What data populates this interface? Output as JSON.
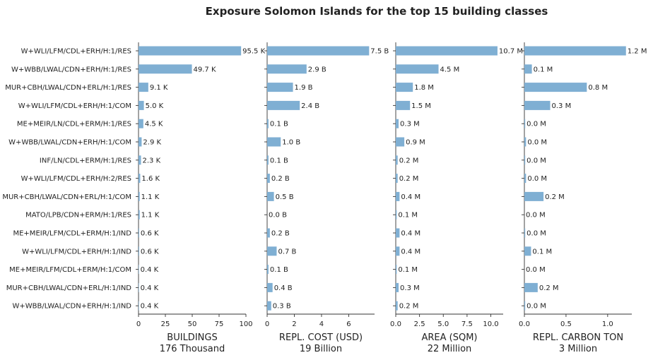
{
  "chart_data": {
    "type": "bar",
    "orientation": "horizontal",
    "title": "Exposure Solomon Islands for the top 15 building classes",
    "categories": [
      "W+WLI/LFM/CDL+ERH/H:1/RES",
      "W+WBB/LWAL/CDN+ERH/H:1/RES",
      "MUR+CBH/LWAL/CDN+ERL/H:1/RES",
      "W+WLI/LFM/CDL+ERH/H:1/COM",
      "ME+MEIR/LN/CDL+ERM/H:1/RES",
      "W+WBB/LWAL/CDN+ERH/H:1/COM",
      "INF/LN/CDL+ERM/H:1/RES",
      "W+WLI/LFM/CDL+ERH/H:2/RES",
      "MUR+CBH/LWAL/CDN+ERL/H:1/COM",
      "MATO/LPB/CDN+ERM/H:1/RES",
      "ME+MEIR/LFM/CDL+ERM/H:1/IND",
      "W+WLI/LFM/CDL+ERH/H:1/IND",
      "ME+MEIR/LFM/CDL+ERM/H:1/COM",
      "MUR+CBH/LWAL/CDN+ERL/H:1/IND",
      "W+WBB/LWAL/CDN+ERH/H:1/IND"
    ],
    "bar_color": "#7fafd3",
    "grid": false,
    "panels": [
      {
        "xlabel": "BUILDINGS",
        "subtitle": "176 Thousand",
        "xlim": [
          0,
          100
        ],
        "ticks": [
          "0",
          "25",
          "50",
          "75",
          "100"
        ],
        "tick_values": [
          0,
          25,
          50,
          75,
          100
        ],
        "values": [
          95.5,
          49.7,
          9.1,
          5.0,
          4.5,
          2.9,
          2.3,
          1.6,
          1.1,
          1.1,
          0.6,
          0.6,
          0.4,
          0.4,
          0.4
        ],
        "labels": [
          "95.5 K",
          "49.7 K",
          "9.1 K",
          "5.0 K",
          "4.5 K",
          "2.9 K",
          "2.3 K",
          "1.6 K",
          "1.1 K",
          "1.1 K",
          "0.6 K",
          "0.6 K",
          "0.4 K",
          "0.4 K",
          "0.4 K"
        ]
      },
      {
        "xlabel": "REPL. COST (USD)",
        "subtitle": "19 Billion",
        "xlim": [
          0,
          7.9
        ],
        "ticks": [
          "0",
          "2",
          "4",
          "6"
        ],
        "tick_values": [
          0,
          2,
          4,
          6
        ],
        "values": [
          7.5,
          2.9,
          1.9,
          2.4,
          0.1,
          1.0,
          0.1,
          0.2,
          0.5,
          0.0,
          0.2,
          0.7,
          0.1,
          0.4,
          0.3
        ],
        "labels": [
          "7.5 B",
          "2.9 B",
          "1.9 B",
          "2.4 B",
          "0.1 B",
          "1.0 B",
          "0.1 B",
          "0.2 B",
          "0.5 B",
          "0.0 B",
          "0.2 B",
          "0.7 B",
          "0.1 B",
          "0.4 B",
          "0.3 B"
        ]
      },
      {
        "xlabel": "AREA (SQM)",
        "subtitle": "22 Million",
        "xlim": [
          0,
          11.3
        ],
        "ticks": [
          "0.0",
          "2.5",
          "5.0",
          "7.5",
          "10.0"
        ],
        "tick_values": [
          0,
          2.5,
          5,
          7.5,
          10
        ],
        "values": [
          10.7,
          4.5,
          1.8,
          1.5,
          0.3,
          0.9,
          0.2,
          0.2,
          0.4,
          0.1,
          0.4,
          0.4,
          0.1,
          0.3,
          0.2
        ],
        "labels": [
          "10.7 M",
          "4.5 M",
          "1.8 M",
          "1.5 M",
          "0.3 M",
          "0.9 M",
          "0.2 M",
          "0.2 M",
          "0.4 M",
          "0.1 M",
          "0.4 M",
          "0.4 M",
          "0.1 M",
          "0.3 M",
          "0.2 M"
        ]
      },
      {
        "xlabel": "REPL. CARBON TON",
        "subtitle": "3 Million",
        "xlim": [
          0,
          1.29
        ],
        "ticks": [
          "0.0",
          "0.5",
          "1.0"
        ],
        "tick_values": [
          0,
          0.5,
          1.0
        ],
        "values": [
          1.22,
          0.09,
          0.75,
          0.31,
          0.01,
          0.02,
          0.01,
          0.02,
          0.23,
          0.0,
          0.01,
          0.08,
          0.0,
          0.16,
          0.01
        ],
        "labels": [
          "1.2 M",
          "0.1 M",
          "0.8 M",
          "0.3 M",
          "0.0 M",
          "0.0 M",
          "0.0 M",
          "0.0 M",
          "0.2 M",
          "0.0 M",
          "0.0 M",
          "0.1 M",
          "0.0 M",
          "0.2 M",
          "0.0 M"
        ]
      }
    ]
  }
}
